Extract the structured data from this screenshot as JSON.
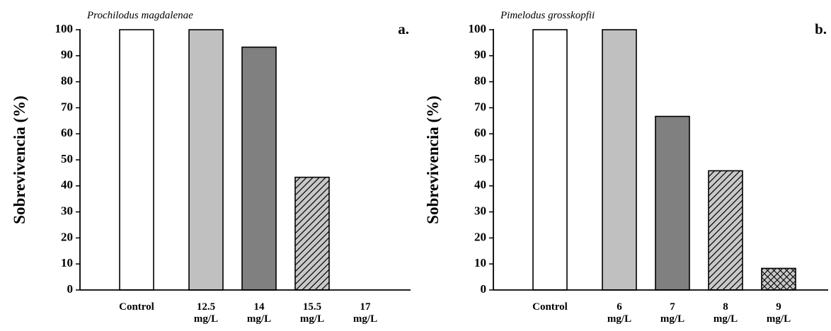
{
  "chart_data": [
    {
      "type": "bar",
      "title": "Prochilodus magdalenae",
      "panel_label": "a.",
      "ylabel": "Sobrevivencia (%)",
      "categories": [
        "Control",
        "12.5\nmg/L",
        "14\nmg/L",
        "15.5\nmg/L",
        "17\nmg/L"
      ],
      "values": [
        100,
        100,
        93.3,
        43.3,
        0
      ],
      "colors": [
        "#ffffff",
        "#c0c0c0",
        "#808080",
        "#c8c8c8",
        "#c8c8c8"
      ],
      "patterns": [
        "solid",
        "solid",
        "solid",
        "diagonal",
        "crosshatch"
      ],
      "ylim": [
        0,
        100
      ],
      "yticks": [
        0,
        10,
        20,
        30,
        40,
        50,
        60,
        70,
        80,
        90,
        100
      ]
    },
    {
      "type": "bar",
      "title": "Pimelodus grosskopfii",
      "panel_label": "b.",
      "ylabel": "Sobrevivencia (%)",
      "categories": [
        "Control",
        "6\nmg/L",
        "7\nmg/L",
        "8\nmg/L",
        "9\nmg/L"
      ],
      "values": [
        100,
        100,
        66.7,
        45.8,
        8.3
      ],
      "colors": [
        "#ffffff",
        "#c0c0c0",
        "#808080",
        "#c8c8c8",
        "#c8c8c8"
      ],
      "patterns": [
        "solid",
        "solid",
        "solid",
        "diagonal",
        "crosshatch"
      ],
      "ylim": [
        0,
        100
      ],
      "yticks": [
        0,
        10,
        20,
        30,
        40,
        50,
        60,
        70,
        80,
        90,
        100
      ]
    }
  ]
}
